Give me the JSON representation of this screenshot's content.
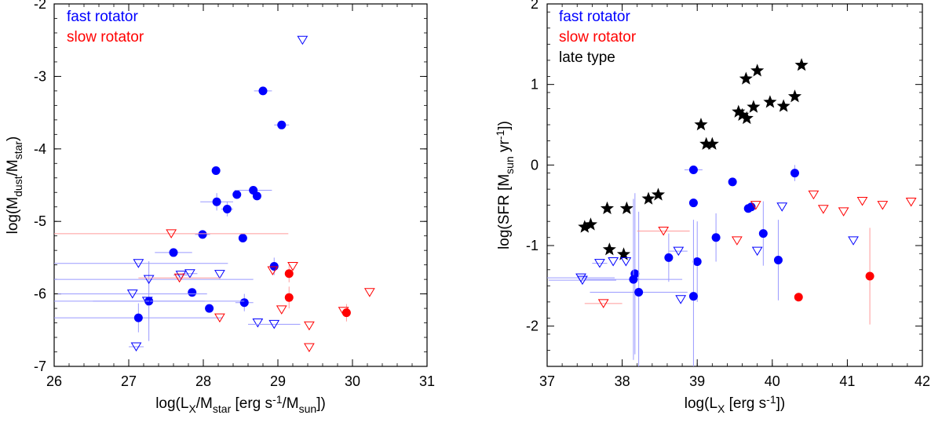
{
  "chart_data": [
    {
      "type": "scatter",
      "id": "left",
      "xlim": [
        26,
        31
      ],
      "ylim": [
        -7,
        -2
      ],
      "xticks": [
        26,
        27,
        28,
        29,
        30,
        31
      ],
      "yticks": [
        -7,
        -6,
        -5,
        -4,
        -3,
        -2
      ],
      "xlabel": {
        "pre": "log(L",
        "sub": "X",
        "post": "/M",
        "sub2": "star",
        "tail": " [erg s",
        "sup": "-1",
        "end": "/M",
        "sub3": "sun",
        "close": "])"
      },
      "ylabel": {
        "pre": "log(M",
        "sub": "dust",
        "mid": "/M",
        "sub2": "star",
        "close": ")"
      },
      "legend": [
        {
          "label": "fast rotator",
          "color": "#0000ff"
        },
        {
          "label": "slow rotator",
          "color": "#ff0000"
        }
      ],
      "series": [
        {
          "name": "fast rotator",
          "kind": "detection",
          "color": "#0000ff",
          "points": [
            {
              "x": 28.8,
              "y": -3.2,
              "xerr": 0.12
            },
            {
              "x": 29.05,
              "y": -3.67,
              "xerr": 0.1
            },
            {
              "x": 28.17,
              "y": -4.3
            },
            {
              "x": 28.18,
              "y": -4.73,
              "xerr": 0.22,
              "yerr": 0.12
            },
            {
              "x": 28.32,
              "y": -4.83,
              "xerr": 0.08,
              "yerr": 0.1
            },
            {
              "x": 28.45,
              "y": -4.63
            },
            {
              "x": 28.67,
              "y": -4.57,
              "xerr": 0.25
            },
            {
              "x": 28.72,
              "y": -4.65
            },
            {
              "x": 27.99,
              "y": -5.18,
              "xerr": 0.1
            },
            {
              "x": 28.53,
              "y": -5.23
            },
            {
              "x": 27.6,
              "y": -5.43,
              "xerr": 0.25
            },
            {
              "x": 28.95,
              "y": -5.62,
              "yerr": 0.12
            },
            {
              "x": 27.85,
              "y": -5.98
            },
            {
              "x": 28.55,
              "y": -6.12,
              "xerr": 0.12,
              "yerr": 0.12
            },
            {
              "x": 28.08,
              "y": -6.2
            },
            {
              "x": 27.27,
              "y": -6.1,
              "xerr": 0.75,
              "yerr": 0.55
            },
            {
              "x": 27.13,
              "y": -6.33,
              "xerr": 1.13,
              "yerr": 0.2
            }
          ]
        },
        {
          "name": "fast rotator",
          "kind": "upper limit",
          "color": "#0000ff",
          "points": [
            {
              "x": 29.33,
              "y": -2.5
            },
            {
              "x": 27.13,
              "y": -5.58,
              "xerr": 1.2
            },
            {
              "x": 27.27,
              "y": -5.8,
              "xerr": 1.4
            },
            {
              "x": 27.05,
              "y": -6.0,
              "xerr": 1.0
            },
            {
              "x": 27.25,
              "y": -6.1,
              "xerr": 1.3
            },
            {
              "x": 27.82,
              "y": -5.72,
              "xerr": 0.1
            },
            {
              "x": 27.7,
              "y": -5.74,
              "xerr": 0.1
            },
            {
              "x": 28.22,
              "y": -5.73
            },
            {
              "x": 28.73,
              "y": -6.4
            },
            {
              "x": 28.95,
              "y": -6.42,
              "xerr": 0.35
            },
            {
              "x": 27.1,
              "y": -6.73,
              "xerr": 0.1
            }
          ]
        },
        {
          "name": "slow rotator",
          "kind": "detection",
          "color": "#ff0000",
          "points": [
            {
              "x": 29.15,
              "y": -5.72,
              "yerr": 0.12
            },
            {
              "x": 29.15,
              "y": -6.05,
              "xerr": 0.05,
              "yerr": 0.15
            },
            {
              "x": 29.92,
              "y": -6.26,
              "xerr": 0.05,
              "yerr": 0.12
            }
          ]
        },
        {
          "name": "slow rotator",
          "kind": "upper limit",
          "color": "#ff0000",
          "points": [
            {
              "x": 27.57,
              "y": -5.17,
              "xerr": 1.57
            },
            {
              "x": 27.68,
              "y": -5.78,
              "xerr": 0.55
            },
            {
              "x": 28.22,
              "y": -6.33
            },
            {
              "x": 28.93,
              "y": -5.68
            },
            {
              "x": 29.2,
              "y": -5.62
            },
            {
              "x": 29.05,
              "y": -6.22
            },
            {
              "x": 29.42,
              "y": -6.44
            },
            {
              "x": 29.42,
              "y": -6.74
            },
            {
              "x": 29.88,
              "y": -6.24
            },
            {
              "x": 30.23,
              "y": -5.98
            }
          ]
        }
      ]
    },
    {
      "type": "scatter",
      "id": "right",
      "xlim": [
        37,
        42
      ],
      "ylim": [
        -2.5,
        2
      ],
      "xticks": [
        37,
        38,
        39,
        40,
        41,
        42
      ],
      "yticks": [
        -2,
        -1,
        0,
        1,
        2
      ],
      "xlabel": {
        "pre": "log(L",
        "sub": "X",
        "post": " [erg s",
        "sup": "-1",
        "close": "])"
      },
      "ylabel": {
        "pre": "log(SFR [M",
        "sub": "sun",
        "mid": " yr",
        "sup": "-1",
        "close": "])"
      },
      "legend": [
        {
          "label": "fast rotator",
          "color": "#0000ff"
        },
        {
          "label": "slow rotator",
          "color": "#ff0000"
        },
        {
          "label": "late type",
          "color": "#000000"
        }
      ],
      "series": [
        {
          "name": "late type",
          "kind": "star",
          "color": "#000000",
          "points": [
            {
              "x": 37.5,
              "y": -0.77
            },
            {
              "x": 37.58,
              "y": -0.74
            },
            {
              "x": 37.8,
              "y": -0.54
            },
            {
              "x": 37.83,
              "y": -1.05
            },
            {
              "x": 38.02,
              "y": -1.11
            },
            {
              "x": 38.06,
              "y": -0.54
            },
            {
              "x": 38.35,
              "y": -0.42
            },
            {
              "x": 38.48,
              "y": -0.37
            },
            {
              "x": 39.05,
              "y": 0.5
            },
            {
              "x": 39.12,
              "y": 0.26
            },
            {
              "x": 39.2,
              "y": 0.26
            },
            {
              "x": 39.55,
              "y": 0.66
            },
            {
              "x": 39.6,
              "y": 0.62
            },
            {
              "x": 39.65,
              "y": 1.07
            },
            {
              "x": 39.66,
              "y": 0.58
            },
            {
              "x": 39.75,
              "y": 0.72
            },
            {
              "x": 39.8,
              "y": 1.17
            },
            {
              "x": 39.97,
              "y": 0.78
            },
            {
              "x": 40.15,
              "y": 0.73
            },
            {
              "x": 40.3,
              "y": 0.85
            },
            {
              "x": 40.39,
              "y": 1.24
            }
          ]
        },
        {
          "name": "fast rotator",
          "kind": "detection",
          "color": "#0000ff",
          "points": [
            {
              "x": 38.95,
              "y": -0.06,
              "xerr": 0.12
            },
            {
              "x": 38.95,
              "y": -0.47
            },
            {
              "x": 39.47,
              "y": -0.21
            },
            {
              "x": 40.3,
              "y": -0.1,
              "yerr": 0.1
            },
            {
              "x": 39.68,
              "y": -0.54
            },
            {
              "x": 39.72,
              "y": -0.52
            },
            {
              "x": 39.25,
              "y": -0.9,
              "yerr": 0.3
            },
            {
              "x": 39.88,
              "y": -0.85,
              "yerr": 0.4
            },
            {
              "x": 38.62,
              "y": -1.15,
              "yerr": 0.3
            },
            {
              "x": 39.0,
              "y": -1.2,
              "yerr": 0.5
            },
            {
              "x": 40.08,
              "y": -1.18,
              "yerr": 0.5
            },
            {
              "x": 38.17,
              "y": -1.35,
              "yerr": 1.0
            },
            {
              "x": 38.15,
              "y": -1.42,
              "xerr": 0.65,
              "yerr": 1.0
            },
            {
              "x": 38.22,
              "y": -1.58,
              "xerr": 0.65,
              "yerr": 1.0
            },
            {
              "x": 38.95,
              "y": -1.63,
              "yerr": 0.95
            }
          ]
        },
        {
          "name": "fast rotator",
          "kind": "upper limit",
          "color": "#0000ff",
          "points": [
            {
              "x": 37.45,
              "y": -1.4,
              "xerr": 0.45
            },
            {
              "x": 37.47,
              "y": -1.43,
              "xerr": 0.45
            },
            {
              "x": 37.7,
              "y": -1.22,
              "xerr": 0.1
            },
            {
              "x": 37.88,
              "y": -1.2
            },
            {
              "x": 38.05,
              "y": -1.2
            },
            {
              "x": 38.75,
              "y": -1.07,
              "xerr": 0.12
            },
            {
              "x": 38.78,
              "y": -1.67
            },
            {
              "x": 39.8,
              "y": -1.07
            },
            {
              "x": 40.13,
              "y": -0.52
            },
            {
              "x": 41.08,
              "y": -0.94
            }
          ]
        },
        {
          "name": "slow rotator",
          "kind": "detection",
          "color": "#ff0000",
          "points": [
            {
              "x": 40.35,
              "y": -1.64
            },
            {
              "x": 41.3,
              "y": -1.38,
              "yerr": 0.6
            }
          ]
        },
        {
          "name": "slow rotator",
          "kind": "upper limit",
          "color": "#ff0000",
          "points": [
            {
              "x": 37.75,
              "y": -1.72,
              "xerr": 0.25
            },
            {
              "x": 38.55,
              "y": -0.82,
              "xerr": 0.35
            },
            {
              "x": 39.53,
              "y": -0.94
            },
            {
              "x": 39.78,
              "y": -0.5
            },
            {
              "x": 40.55,
              "y": -0.37
            },
            {
              "x": 40.68,
              "y": -0.55
            },
            {
              "x": 40.95,
              "y": -0.58
            },
            {
              "x": 41.2,
              "y": -0.45
            },
            {
              "x": 41.47,
              "y": -0.5
            },
            {
              "x": 41.85,
              "y": -0.46
            }
          ]
        }
      ]
    }
  ]
}
